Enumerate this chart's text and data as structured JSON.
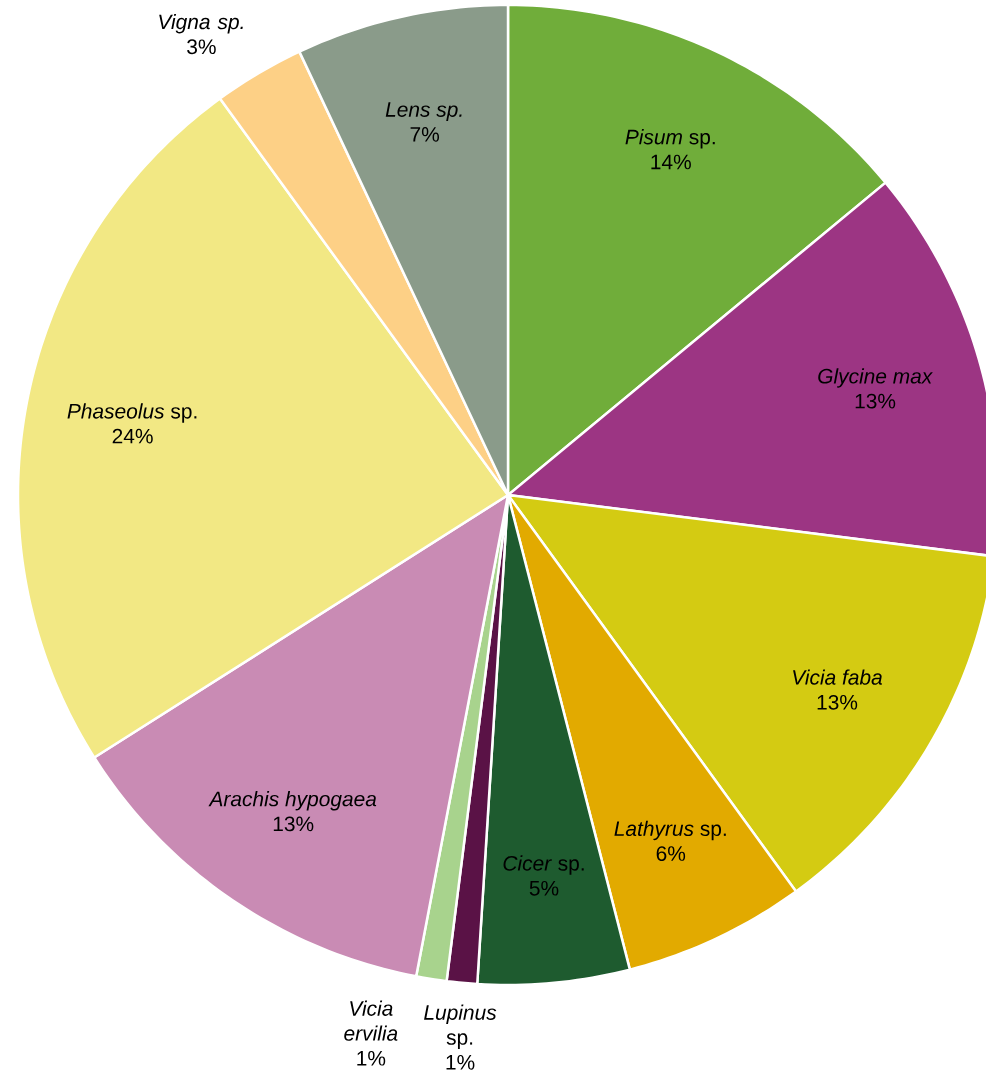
{
  "chart_data": {
    "type": "pie",
    "categories": [
      "*Pisum* sp.",
      "*Glycine max*",
      "*Vicia faba*",
      "*Lathyrus* sp.",
      "*Cicer* sp.",
      "*Lupinus* sp.",
      "*Vicia ervilia*",
      "*Arachis hypogaea*",
      "*Phaseolus* sp.",
      "*Vigna sp.*",
      "*Lens sp.*"
    ],
    "values": [
      14,
      13,
      13,
      6,
      5,
      1,
      1,
      13,
      24,
      3,
      7
    ],
    "value_labels": [
      "14%",
      "13%",
      "13%",
      "6%",
      "5%",
      "1%",
      "1%",
      "13%",
      "24%",
      "3%",
      "7%"
    ],
    "colors": [
      "#70ad3a",
      "#9c3583",
      "#d4cb12",
      "#e2aa00",
      "#1e5b2f",
      "#5a1246",
      "#a8d38d",
      "#c98bb4",
      "#f2e884",
      "#fdd086",
      "#8a9b8a"
    ]
  }
}
